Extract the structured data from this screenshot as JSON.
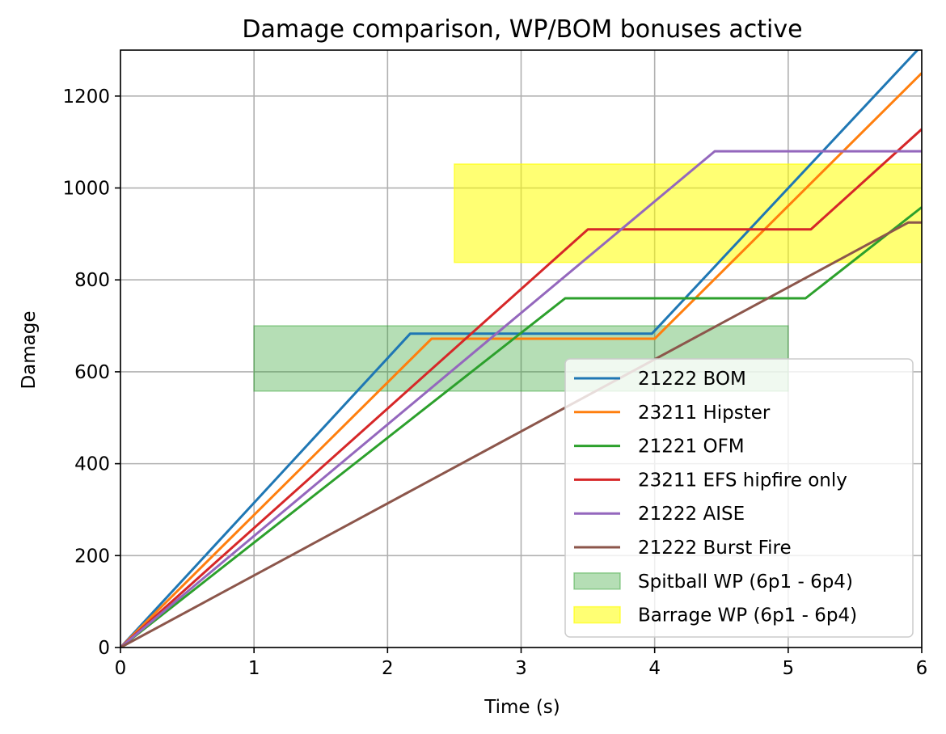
{
  "chart_data": {
    "type": "line",
    "title": "Damage comparison, WP/BOM bonuses active",
    "xlabel": "Time (s)",
    "ylabel": "Damage",
    "xlim": [
      0,
      6
    ],
    "ylim": [
      0,
      1300
    ],
    "xticks": [
      0,
      1,
      2,
      3,
      4,
      5,
      6
    ],
    "yticks": [
      0,
      200,
      400,
      600,
      800,
      1000,
      1200
    ],
    "grid": true,
    "legend_position": "lower-right",
    "series": [
      {
        "name": "21222 BOM",
        "color": "#1f77b4",
        "points": [
          [
            0,
            0
          ],
          [
            2.17,
            683
          ],
          [
            3.98,
            683
          ],
          [
            6.0,
            1310
          ]
        ]
      },
      {
        "name": "23211 Hipster",
        "color": "#ff7f0e",
        "points": [
          [
            0,
            0
          ],
          [
            2.33,
            672
          ],
          [
            4.0,
            672
          ],
          [
            6.0,
            1250
          ]
        ]
      },
      {
        "name": "21221 OFM",
        "color": "#2ca02c",
        "points": [
          [
            0,
            0
          ],
          [
            3.33,
            760
          ],
          [
            5.13,
            760
          ],
          [
            6.0,
            958
          ]
        ]
      },
      {
        "name": "23211 EFS hipfire only",
        "color": "#d62728",
        "points": [
          [
            0,
            0
          ],
          [
            3.5,
            910
          ],
          [
            5.17,
            910
          ],
          [
            6.0,
            1128
          ]
        ]
      },
      {
        "name": "21222 AISE",
        "color": "#9467bd",
        "points": [
          [
            0,
            0
          ],
          [
            4.45,
            1080
          ],
          [
            6.0,
            1080
          ]
        ]
      },
      {
        "name": "21222 Burst Fire",
        "color": "#8c564b",
        "points": [
          [
            0,
            0
          ],
          [
            5.9,
            925
          ],
          [
            6.0,
            925
          ]
        ]
      }
    ],
    "bands": [
      {
        "name": "Spitball WP (6p1 - 6p4)",
        "x": [
          1,
          5
        ],
        "y": [
          558,
          700
        ],
        "color": "#2ca02c",
        "opacity": 0.35
      },
      {
        "name": "Barrage WP (6p1 - 6p4)",
        "x": [
          2.5,
          6
        ],
        "y": [
          838,
          1052
        ],
        "color": "#ffff00",
        "opacity": 0.55
      }
    ]
  }
}
